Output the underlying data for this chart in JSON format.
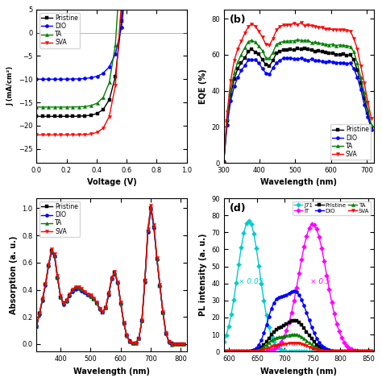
{
  "colors": {
    "Pristine": "#000000",
    "DIO": "#0000ff",
    "TA": "#008000",
    "SVA": "#ff0000",
    "J71": "#00cccc",
    "IT": "#ff00ff"
  },
  "markers": {
    "Pristine": "s",
    "DIO": "o",
    "TA": "^",
    "SVA": "v",
    "J71": "D",
    "IT": "D"
  },
  "background_color": "#ffffff",
  "linewidth": 1.0,
  "markersize": 3.0
}
